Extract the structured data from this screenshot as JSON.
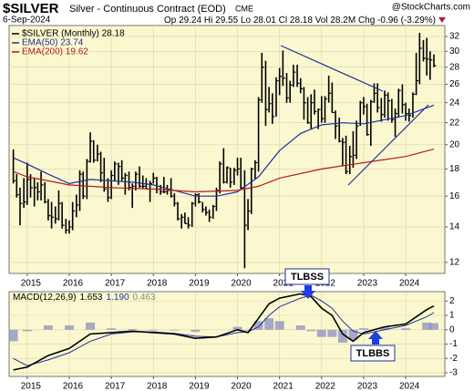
{
  "chart_data": [
    {
      "type": "ohlc",
      "title": "$SILVER",
      "subtitle": "Silver - Continuous Contract (EOD)",
      "exchange": "CME",
      "source": "@StockCharts.com",
      "date": "6-Sep-2024",
      "quote": [
        "Op 29.24",
        "Hi 29.55",
        "Lo 28.01",
        "Cl 28.18",
        "Vol 28.2M",
        "Chg -0.96 (-3.29%)"
      ],
      "name": "$SILVER (Monthly) 28.18",
      "color": "#000000",
      "x": [
        2014.67,
        2014.75,
        2014.83,
        2014.92,
        2015.0,
        2015.08,
        2015.17,
        2015.25,
        2015.33,
        2015.42,
        2015.5,
        2015.58,
        2015.67,
        2015.75,
        2015.83,
        2015.92,
        2016.0,
        2016.08,
        2016.17,
        2016.25,
        2016.33,
        2016.42,
        2016.5,
        2016.58,
        2016.67,
        2016.75,
        2016.83,
        2016.92,
        2017.0,
        2017.08,
        2017.17,
        2017.25,
        2017.33,
        2017.42,
        2017.5,
        2017.58,
        2017.67,
        2017.75,
        2017.83,
        2017.92,
        2018.0,
        2018.08,
        2018.17,
        2018.25,
        2018.33,
        2018.42,
        2018.5,
        2018.58,
        2018.67,
        2018.75,
        2018.83,
        2018.92,
        2019.0,
        2019.08,
        2019.17,
        2019.25,
        2019.33,
        2019.42,
        2019.5,
        2019.58,
        2019.67,
        2019.75,
        2019.83,
        2019.92,
        2020.0,
        2020.08,
        2020.17,
        2020.25,
        2020.33,
        2020.42,
        2020.5,
        2020.58,
        2020.67,
        2020.75,
        2020.83,
        2020.92,
        2021.0,
        2021.08,
        2021.17,
        2021.25,
        2021.33,
        2021.42,
        2021.5,
        2021.58,
        2021.67,
        2021.75,
        2021.83,
        2021.92,
        2022.0,
        2022.08,
        2022.17,
        2022.25,
        2022.33,
        2022.42,
        2022.5,
        2022.58,
        2022.67,
        2022.75,
        2022.83,
        2022.92,
        2023.0,
        2023.08,
        2023.17,
        2023.25,
        2023.33,
        2023.42,
        2023.5,
        2023.58,
        2023.67,
        2023.75,
        2023.83,
        2023.92,
        2024.0,
        2024.08,
        2024.17,
        2024.25,
        2024.33,
        2024.42,
        2024.5,
        2024.58,
        2024.67
      ],
      "high": [
        19.6,
        17.6,
        16.6,
        17.3,
        18.5,
        17.6,
        17.3,
        17.0,
        17.8,
        17.0,
        15.8,
        15.6,
        15.3,
        16.4,
        15.6,
        14.5,
        14.4,
        15.6,
        16.1,
        17.9,
        17.8,
        18.8,
        21.1,
        20.4,
        20.0,
        19.4,
        18.9,
        17.3,
        17.9,
        18.6,
        18.5,
        18.7,
        17.7,
        17.8,
        16.9,
        17.8,
        18.2,
        17.5,
        17.3,
        17.1,
        17.7,
        17.4,
        16.8,
        17.4,
        16.8,
        17.3,
        16.2,
        15.6,
        14.8,
        14.9,
        14.6,
        15.6,
        16.2,
        16.2,
        15.6,
        15.3,
        15.1,
        15.4,
        16.6,
        18.6,
        19.7,
        18.2,
        18.1,
        18.1,
        18.9,
        18.9,
        17.9,
        15.8,
        18.1,
        18.7,
        24.6,
        29.8,
        28.8,
        25.7,
        25.0,
        26.8,
        27.9,
        30.1,
        27.3,
        26.4,
        28.3,
        28.3,
        26.7,
        25.7,
        24.6,
        24.9,
        25.4,
        23.4,
        24.7,
        24.7,
        27.0,
        26.2,
        23.2,
        22.5,
        20.6,
        20.8,
        19.9,
        21.2,
        22.2,
        24.2,
        24.6,
        23.9,
        24.3,
        26.1,
        26.1,
        24.5,
        25.3,
        25.1,
        24.4,
        23.4,
        25.5,
        26.0,
        24.0,
        23.4,
        25.1,
        29.8,
        32.5,
        31.5,
        31.8,
        30.0,
        29.6
      ],
      "low": [
        16.9,
        15.9,
        14.1,
        15.2,
        15.4,
        15.9,
        15.3,
        15.7,
        15.7,
        15.5,
        14.4,
        13.9,
        14.2,
        14.4,
        13.9,
        13.6,
        13.6,
        13.8,
        14.6,
        15.0,
        15.8,
        15.8,
        18.5,
        18.5,
        18.6,
        17.0,
        16.3,
        15.6,
        15.8,
        17.1,
        16.8,
        17.1,
        16.1,
        16.4,
        15.2,
        16.4,
        16.6,
        16.5,
        16.5,
        15.6,
        16.9,
        16.2,
        16.1,
        16.2,
        16.1,
        15.9,
        15.3,
        14.4,
        13.9,
        14.2,
        13.9,
        14.0,
        15.3,
        15.5,
        14.9,
        14.7,
        14.3,
        14.5,
        15.0,
        16.2,
        16.9,
        16.9,
        16.6,
        16.8,
        17.5,
        16.5,
        11.7,
        13.8,
        14.8,
        17.2,
        17.8,
        24.0,
        21.7,
        23.0,
        21.9,
        22.6,
        24.8,
        25.8,
        24.0,
        24.0,
        25.7,
        25.7,
        25.0,
        22.3,
        21.9,
        21.4,
        22.8,
        21.4,
        22.0,
        22.0,
        24.0,
        23.0,
        20.5,
        20.2,
        18.2,
        17.6,
        17.6,
        18.1,
        18.8,
        21.7,
        22.8,
        20.8,
        19.9,
        24.0,
        23.0,
        22.1,
        22.5,
        22.2,
        22.0,
        20.7,
        22.5,
        22.9,
        22.2,
        22.1,
        22.5,
        24.8,
        26.0,
        28.7,
        27.0,
        26.5,
        28.0
      ],
      "close": [
        17.1,
        16.1,
        15.5,
        15.6,
        17.2,
        16.6,
        16.6,
        16.3,
        16.8,
        15.6,
        14.7,
        14.6,
        14.5,
        15.5,
        14.1,
        13.8,
        14.0,
        15.0,
        15.4,
        17.6,
        16.0,
        18.6,
        20.3,
        18.7,
        19.2,
        17.7,
        16.5,
        15.9,
        17.5,
        18.4,
        18.2,
        17.3,
        17.5,
        16.6,
        16.7,
        17.6,
        16.7,
        16.7,
        16.5,
        16.9,
        17.3,
        16.5,
        16.3,
        16.3,
        16.4,
        16.0,
        15.5,
        14.5,
        14.6,
        14.2,
        14.1,
        15.5,
        16.1,
        15.6,
        15.1,
        14.9,
        14.6,
        15.3,
        16.4,
        18.4,
        17.0,
        18.1,
        17.0,
        17.9,
        18.0,
        16.6,
        14.1,
        15.0,
        18.0,
        18.5,
        24.3,
        28.0,
        23.3,
        23.9,
        22.6,
        26.4,
        26.9,
        26.7,
        24.5,
        25.9,
        27.4,
        26.1,
        25.5,
        24.0,
        22.0,
        24.0,
        23.1,
        23.3,
        22.4,
        24.4,
        25.0,
        23.0,
        21.7,
        20.3,
        20.2,
        17.8,
        19.0,
        19.1,
        21.7,
        24.0,
        23.6,
        20.9,
        24.1,
        25.0,
        23.5,
        22.8,
        24.8,
        24.2,
        22.3,
        22.9,
        25.3,
        23.8,
        22.9,
        22.7,
        24.9,
        26.4,
        30.4,
        29.1,
        29.0,
        28.9,
        28.18
      ],
      "overlays": [
        {
          "name": "EMA(50) 23.74",
          "color": "#1f2fa0",
          "x": [
            2014.67,
            2015,
            2015.5,
            2016,
            2016.5,
            2017,
            2017.5,
            2018,
            2018.5,
            2019,
            2019.5,
            2020,
            2020.5,
            2021,
            2021.5,
            2022,
            2022.5,
            2023,
            2023.5,
            2024,
            2024.67
          ],
          "values": [
            18.9,
            18.4,
            17.6,
            16.9,
            17.2,
            17.1,
            17.0,
            16.8,
            16.4,
            16.0,
            16.0,
            16.3,
            17.4,
            19.5,
            21.0,
            21.8,
            22.0,
            21.9,
            22.3,
            22.7,
            23.74
          ]
        },
        {
          "name": "EMA(200) 19.62",
          "color": "#b31b1b",
          "x": [
            2014.67,
            2015,
            2016,
            2017,
            2018,
            2019,
            2020,
            2020.5,
            2021,
            2022,
            2023,
            2024,
            2024.67
          ],
          "values": [
            17.8,
            17.4,
            16.8,
            16.6,
            16.5,
            16.3,
            16.4,
            16.7,
            17.3,
            18.0,
            18.5,
            19.0,
            19.62
          ]
        }
      ],
      "log_scale": true,
      "grid": true,
      "xlim": [
        2014.57,
        2024.93
      ],
      "xticks": [
        2015,
        2016,
        2017,
        2018,
        2019,
        2020,
        2021,
        2022,
        2023,
        2024
      ],
      "ylim": [
        11.44,
        33.55
      ],
      "yticks": [
        12,
        14,
        16,
        18,
        20,
        22,
        24,
        26,
        28,
        30,
        32
      ]
    },
    {
      "type": "macd",
      "legend_labels": [
        "MACD(12,26,9)",
        "1.653",
        "1.190",
        "0.463"
      ],
      "annotations": [
        "TLBSS",
        "TLBBS"
      ],
      "x": [
        2014.67,
        2015,
        2015.5,
        2016,
        2016.5,
        2017,
        2017.5,
        2018,
        2018.5,
        2019,
        2019.5,
        2020,
        2020.25,
        2020.5,
        2020.75,
        2021,
        2021.5,
        2021.75,
        2022,
        2022.25,
        2022.5,
        2022.75,
        2023,
        2023.5,
        2024,
        2024.5,
        2024.67
      ],
      "series": [
        {
          "name": "MACD",
          "color": "#000000",
          "values": [
            -2.8,
            -2.6,
            -1.8,
            -1.3,
            -0.3,
            -0.2,
            -0.1,
            -0.2,
            -0.3,
            -0.6,
            -0.5,
            0.0,
            -0.2,
            0.8,
            1.8,
            2.2,
            2.5,
            2.3,
            1.5,
            1.0,
            -0.3,
            -0.8,
            -0.2,
            0.2,
            0.4,
            1.4,
            1.653
          ]
        },
        {
          "name": "Signal",
          "color": "#1f2fa0",
          "values": [
            -2.0,
            -2.5,
            -2.1,
            -1.6,
            -0.8,
            -0.3,
            -0.15,
            -0.15,
            -0.25,
            -0.45,
            -0.5,
            -0.2,
            -0.15,
            0.2,
            1.0,
            1.6,
            2.2,
            2.4,
            2.0,
            1.5,
            0.6,
            -0.1,
            -0.3,
            0.0,
            0.3,
            0.9,
            1.19
          ]
        },
        {
          "name": "Histogram",
          "color": "#8a8fbf",
          "values": [
            -0.8,
            -0.1,
            0.3,
            0.3,
            0.5,
            0.1,
            0.05,
            -0.05,
            -0.05,
            -0.15,
            0.0,
            0.2,
            -0.05,
            0.6,
            0.8,
            0.6,
            0.3,
            -0.1,
            -0.5,
            -0.5,
            -0.9,
            -0.7,
            0.1,
            0.2,
            0.1,
            0.5,
            0.463
          ]
        }
      ],
      "grid": true,
      "xlim": [
        2014.57,
        2024.93
      ],
      "xticks": [
        2015,
        2016,
        2017,
        2018,
        2019,
        2020,
        2021,
        2022,
        2023,
        2024
      ],
      "ylim": [
        -3.25,
        2.65
      ],
      "yticks": [
        -3,
        -2,
        -1,
        0,
        1,
        2
      ]
    }
  ]
}
